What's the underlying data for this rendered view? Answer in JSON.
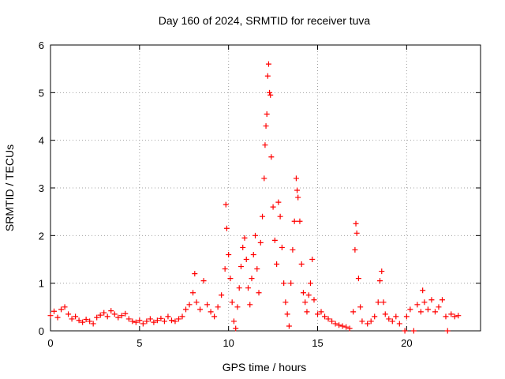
{
  "chart_data": {
    "type": "scatter",
    "title": "Day 160 of 2024, SRMTID for receiver tuva",
    "xlabel": "GPS time / hours",
    "ylabel": "SRMTID / TECUs",
    "xlim": [
      0,
      24.15
    ],
    "ylim": [
      0,
      6
    ],
    "xticks": [
      0,
      5,
      10,
      15,
      20
    ],
    "yticks": [
      0,
      1,
      2,
      3,
      4,
      5,
      6
    ],
    "grid": true,
    "marker": "plus",
    "color": "#ff0000",
    "series": [
      {
        "name": "tuva",
        "points": [
          [
            0.0,
            0.32
          ],
          [
            0.2,
            0.41
          ],
          [
            0.4,
            0.28
          ],
          [
            0.6,
            0.45
          ],
          [
            0.8,
            0.5
          ],
          [
            1.0,
            0.35
          ],
          [
            1.2,
            0.25
          ],
          [
            1.4,
            0.3
          ],
          [
            1.6,
            0.22
          ],
          [
            1.8,
            0.18
          ],
          [
            2.0,
            0.24
          ],
          [
            2.2,
            0.2
          ],
          [
            2.4,
            0.15
          ],
          [
            2.6,
            0.28
          ],
          [
            2.8,
            0.33
          ],
          [
            3.0,
            0.38
          ],
          [
            3.2,
            0.3
          ],
          [
            3.4,
            0.42
          ],
          [
            3.6,
            0.35
          ],
          [
            3.8,
            0.28
          ],
          [
            4.0,
            0.32
          ],
          [
            4.2,
            0.36
          ],
          [
            4.4,
            0.25
          ],
          [
            4.6,
            0.2
          ],
          [
            4.8,
            0.18
          ],
          [
            5.0,
            0.22
          ],
          [
            5.2,
            0.15
          ],
          [
            5.4,
            0.2
          ],
          [
            5.6,
            0.25
          ],
          [
            5.8,
            0.18
          ],
          [
            6.0,
            0.22
          ],
          [
            6.2,
            0.26
          ],
          [
            6.4,
            0.2
          ],
          [
            6.6,
            0.3
          ],
          [
            6.8,
            0.22
          ],
          [
            7.0,
            0.2
          ],
          [
            7.2,
            0.25
          ],
          [
            7.4,
            0.3
          ],
          [
            7.6,
            0.45
          ],
          [
            7.8,
            0.55
          ],
          [
            8.0,
            0.8
          ],
          [
            8.1,
            1.2
          ],
          [
            8.2,
            0.6
          ],
          [
            8.4,
            0.45
          ],
          [
            8.6,
            1.05
          ],
          [
            8.8,
            0.55
          ],
          [
            9.0,
            0.4
          ],
          [
            9.2,
            0.3
          ],
          [
            9.4,
            0.5
          ],
          [
            9.6,
            0.75
          ],
          [
            9.8,
            1.3
          ],
          [
            9.85,
            2.65
          ],
          [
            9.9,
            2.15
          ],
          [
            10.0,
            1.6
          ],
          [
            10.1,
            1.1
          ],
          [
            10.2,
            0.6
          ],
          [
            10.3,
            0.2
          ],
          [
            10.4,
            0.05
          ],
          [
            10.5,
            0.5
          ],
          [
            10.6,
            0.9
          ],
          [
            10.7,
            1.35
          ],
          [
            10.8,
            1.75
          ],
          [
            10.9,
            1.95
          ],
          [
            11.0,
            1.5
          ],
          [
            11.1,
            0.9
          ],
          [
            11.2,
            0.55
          ],
          [
            11.3,
            1.1
          ],
          [
            11.4,
            1.6
          ],
          [
            11.5,
            2.0
          ],
          [
            11.6,
            1.3
          ],
          [
            11.7,
            0.8
          ],
          [
            11.8,
            1.85
          ],
          [
            11.9,
            2.4
          ],
          [
            12.0,
            3.2
          ],
          [
            12.05,
            3.9
          ],
          [
            12.1,
            4.3
          ],
          [
            12.15,
            4.55
          ],
          [
            12.2,
            5.35
          ],
          [
            12.25,
            5.6
          ],
          [
            12.3,
            5.0
          ],
          [
            12.35,
            4.95
          ],
          [
            12.4,
            3.65
          ],
          [
            12.5,
            2.6
          ],
          [
            12.6,
            1.9
          ],
          [
            12.7,
            1.4
          ],
          [
            12.8,
            2.7
          ],
          [
            12.9,
            2.4
          ],
          [
            13.0,
            1.75
          ],
          [
            13.1,
            1.0
          ],
          [
            13.2,
            0.6
          ],
          [
            13.3,
            0.35
          ],
          [
            13.4,
            0.1
          ],
          [
            13.5,
            1.0
          ],
          [
            13.6,
            1.7
          ],
          [
            13.7,
            2.3
          ],
          [
            13.8,
            3.2
          ],
          [
            13.85,
            2.95
          ],
          [
            13.9,
            2.8
          ],
          [
            14.0,
            2.3
          ],
          [
            14.1,
            1.4
          ],
          [
            14.2,
            0.8
          ],
          [
            14.3,
            0.6
          ],
          [
            14.4,
            0.4
          ],
          [
            14.5,
            0.75
          ],
          [
            14.6,
            1.0
          ],
          [
            14.7,
            1.5
          ],
          [
            14.8,
            0.65
          ],
          [
            15.0,
            0.35
          ],
          [
            15.2,
            0.4
          ],
          [
            15.4,
            0.3
          ],
          [
            15.6,
            0.25
          ],
          [
            15.8,
            0.2
          ],
          [
            16.0,
            0.15
          ],
          [
            16.2,
            0.12
          ],
          [
            16.4,
            0.1
          ],
          [
            16.6,
            0.08
          ],
          [
            16.8,
            0.05
          ],
          [
            17.0,
            0.4
          ],
          [
            17.1,
            1.7
          ],
          [
            17.15,
            2.25
          ],
          [
            17.2,
            2.05
          ],
          [
            17.3,
            1.1
          ],
          [
            17.4,
            0.5
          ],
          [
            17.5,
            0.2
          ],
          [
            17.8,
            0.15
          ],
          [
            18.0,
            0.2
          ],
          [
            18.2,
            0.3
          ],
          [
            18.4,
            0.6
          ],
          [
            18.5,
            1.05
          ],
          [
            18.6,
            1.25
          ],
          [
            18.7,
            0.6
          ],
          [
            18.8,
            0.35
          ],
          [
            19.0,
            0.25
          ],
          [
            19.2,
            0.2
          ],
          [
            19.4,
            0.3
          ],
          [
            19.6,
            0.15
          ],
          [
            19.9,
            0.0
          ],
          [
            20.0,
            0.3
          ],
          [
            20.2,
            0.45
          ],
          [
            20.4,
            0.0
          ],
          [
            20.6,
            0.55
          ],
          [
            20.8,
            0.4
          ],
          [
            20.9,
            0.85
          ],
          [
            21.0,
            0.6
          ],
          [
            21.2,
            0.45
          ],
          [
            21.4,
            0.65
          ],
          [
            21.6,
            0.4
          ],
          [
            21.8,
            0.5
          ],
          [
            22.0,
            0.65
          ],
          [
            22.2,
            0.3
          ],
          [
            22.3,
            0.0
          ],
          [
            22.5,
            0.35
          ],
          [
            22.7,
            0.3
          ],
          [
            22.9,
            0.32
          ]
        ]
      }
    ]
  }
}
